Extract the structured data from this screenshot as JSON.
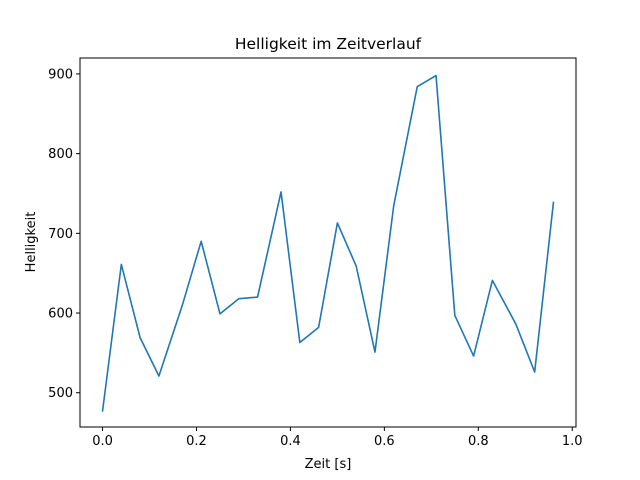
{
  "chart_data": {
    "type": "line",
    "title": "Helligkeit im Zeitverlauf",
    "xlabel": "Zeit [s]",
    "ylabel": "Helligkeit",
    "xlim": [
      -0.048,
      1.008
    ],
    "ylim": [
      457,
      920
    ],
    "xticks": [
      0.0,
      0.2,
      0.4,
      0.6,
      0.8,
      1.0
    ],
    "xtick_labels": [
      "0.0",
      "0.2",
      "0.4",
      "0.6",
      "0.8",
      "1.0"
    ],
    "yticks": [
      500,
      600,
      700,
      800,
      900
    ],
    "ytick_labels": [
      "500",
      "600",
      "700",
      "800",
      "900"
    ],
    "grid": false,
    "series": [
      {
        "color": "#1f77b4",
        "x": [
          0.0,
          0.04,
          0.08,
          0.12,
          0.17,
          0.21,
          0.25,
          0.29,
          0.33,
          0.38,
          0.42,
          0.46,
          0.5,
          0.54,
          0.58,
          0.62,
          0.67,
          0.71,
          0.75,
          0.79,
          0.83,
          0.88,
          0.92,
          0.96
        ],
        "y": [
          477,
          661,
          569,
          521,
          610,
          690,
          599,
          618,
          620,
          752,
          563,
          582,
          713,
          659,
          551,
          735,
          884,
          898,
          597,
          546,
          641,
          586,
          526,
          739
        ]
      }
    ]
  }
}
